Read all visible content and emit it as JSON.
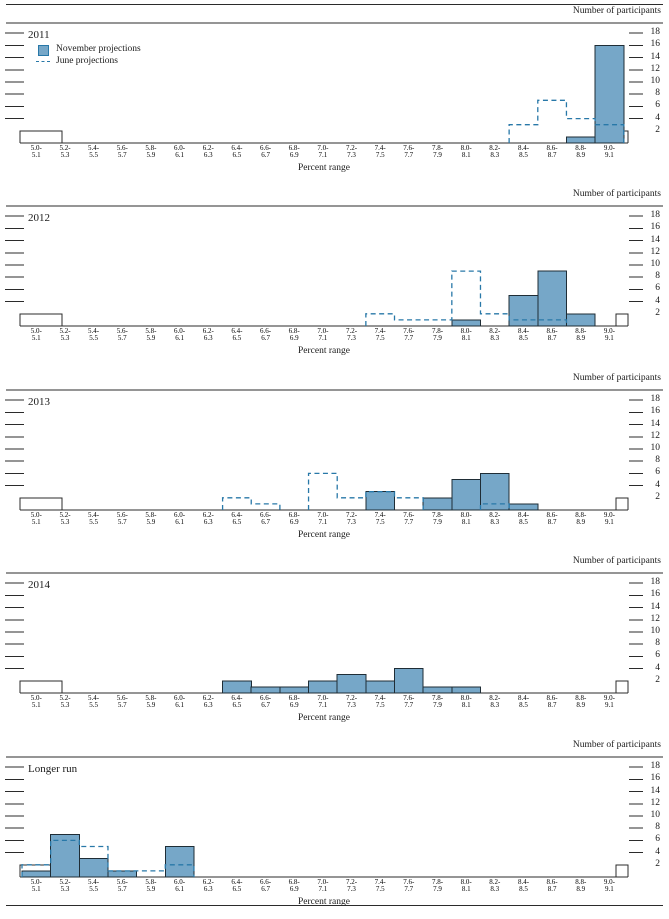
{
  "chart_data": {
    "type": "bar",
    "subtype": "multi-panel-histogram",
    "x_label": "Percent range",
    "y_label": "Number of participants",
    "y_ticks": [
      2,
      4,
      6,
      8,
      10,
      12,
      14,
      16,
      18
    ],
    "ylim": [
      0,
      19.7
    ],
    "grid": false,
    "legend_position": "top-left-of-first-panel",
    "legend": {
      "november": "November projections",
      "june": "June projections"
    },
    "colors": {
      "bar_fill": "#76a7c8",
      "bar_edge": "#1f2d36",
      "june_line": "#2878a8",
      "axis": "#2b2b2b",
      "text": "#1b1b1b"
    },
    "categories": [
      "5.0-5.1",
      "5.2-5.3",
      "5.4-5.5",
      "5.6-5.7",
      "5.8-5.9",
      "6.0-6.1",
      "6.2-6.3",
      "6.4-6.5",
      "6.6-6.7",
      "6.8-6.9",
      "7.0-7.1",
      "7.2-7.3",
      "7.4-7.5",
      "7.6-7.7",
      "7.8-7.9",
      "8.0-8.1",
      "8.2-8.3",
      "8.4-8.5",
      "8.6-8.7",
      "8.8-8.9",
      "9.0-9.1"
    ],
    "bin_labels": [
      [
        "5.0-",
        "5.1"
      ],
      [
        "5.2-",
        "5.3"
      ],
      [
        "5.4-",
        "5.5"
      ],
      [
        "5.6-",
        "5.7"
      ],
      [
        "5.8-",
        "5.9"
      ],
      [
        "6.0-",
        "6.1"
      ],
      [
        "6.2-",
        "6.3"
      ],
      [
        "6.4-",
        "6.5"
      ],
      [
        "6.6-",
        "6.7"
      ],
      [
        "6.8-",
        "6.9"
      ],
      [
        "7.0-",
        "7.1"
      ],
      [
        "7.2-",
        "7.3"
      ],
      [
        "7.4-",
        "7.5"
      ],
      [
        "7.6-",
        "7.7"
      ],
      [
        "7.8-",
        "7.9"
      ],
      [
        "8.0-",
        "8.1"
      ],
      [
        "8.2-",
        "8.3"
      ],
      [
        "8.4-",
        "8.5"
      ],
      [
        "8.6-",
        "8.7"
      ],
      [
        "8.8-",
        "8.9"
      ],
      [
        "9.0-",
        "9.1"
      ]
    ],
    "panels": [
      {
        "title": "2011",
        "show_legend": true,
        "series": [
          {
            "name": "November projections",
            "style": "filled-bar",
            "values": [
              0,
              0,
              0,
              0,
              0,
              0,
              0,
              0,
              0,
              0,
              0,
              0,
              0,
              0,
              0,
              0,
              0,
              0,
              0,
              1,
              16
            ]
          },
          {
            "name": "June projections",
            "style": "dashed-step",
            "values": [
              0,
              0,
              0,
              0,
              0,
              0,
              0,
              0,
              0,
              0,
              0,
              0,
              0,
              0,
              0,
              0,
              0,
              3,
              7,
              4,
              3
            ]
          }
        ]
      },
      {
        "title": "2012",
        "show_legend": false,
        "series": [
          {
            "name": "November projections",
            "style": "filled-bar",
            "values": [
              0,
              0,
              0,
              0,
              0,
              0,
              0,
              0,
              0,
              0,
              0,
              0,
              0,
              0,
              0,
              1,
              0,
              5,
              9,
              2,
              0
            ]
          },
          {
            "name": "June projections",
            "style": "dashed-step",
            "values": [
              0,
              0,
              0,
              0,
              0,
              0,
              0,
              0,
              0,
              0,
              0,
              0,
              2,
              1,
              1,
              9,
              2,
              1,
              1,
              0,
              0
            ]
          }
        ]
      },
      {
        "title": "2013",
        "show_legend": false,
        "series": [
          {
            "name": "November projections",
            "style": "filled-bar",
            "values": [
              0,
              0,
              0,
              0,
              0,
              0,
              0,
              0,
              0,
              0,
              0,
              0,
              3,
              0,
              2,
              5,
              6,
              1,
              0,
              0,
              0
            ]
          },
          {
            "name": "June projections",
            "style": "dashed-step",
            "values": [
              0,
              0,
              0,
              0,
              0,
              0,
              0,
              2,
              1,
              0,
              6,
              2,
              3,
              2,
              0,
              0,
              1,
              0,
              0,
              0,
              0
            ]
          }
        ]
      },
      {
        "title": "2014",
        "show_legend": false,
        "series": [
          {
            "name": "November projections",
            "style": "filled-bar",
            "values": [
              0,
              0,
              0,
              0,
              0,
              0,
              0,
              2,
              1,
              1,
              2,
              3,
              2,
              4,
              1,
              1,
              0,
              0,
              0,
              0,
              0
            ]
          },
          {
            "name": "June projections",
            "style": "dashed-step",
            "values": null
          }
        ]
      },
      {
        "title": "Longer run",
        "show_legend": false,
        "series": [
          {
            "name": "November projections",
            "style": "filled-bar",
            "values": [
              1,
              7,
              3,
              1,
              0,
              5,
              0,
              0,
              0,
              0,
              0,
              0,
              0,
              0,
              0,
              0,
              0,
              0,
              0,
              0,
              0
            ]
          },
          {
            "name": "June projections",
            "style": "dashed-step",
            "values": [
              2,
              6,
              5,
              1,
              1,
              2,
              0,
              0,
              0,
              0,
              0,
              0,
              0,
              0,
              0,
              0,
              0,
              0,
              0,
              0,
              0
            ]
          }
        ]
      }
    ]
  }
}
